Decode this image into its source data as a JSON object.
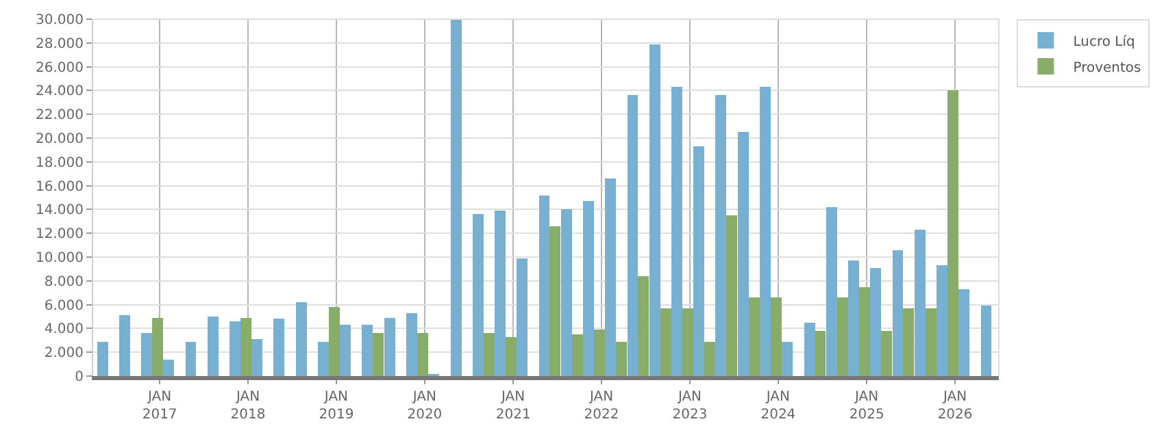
{
  "chart_data": {
    "type": "bar",
    "x": [
      "2016-06",
      "2016-09",
      "2016-12",
      "2017-03",
      "2017-06",
      "2017-09",
      "2017-12",
      "2018-03",
      "2018-06",
      "2018-09",
      "2018-12",
      "2019-03",
      "2019-06",
      "2019-09",
      "2019-12",
      "2020-03",
      "2020-06",
      "2020-09",
      "2020-12",
      "2021-03",
      "2021-06",
      "2021-09",
      "2021-12",
      "2022-03",
      "2022-06",
      "2022-09",
      "2022-12",
      "2023-03",
      "2023-06",
      "2023-09",
      "2023-12",
      "2024-03",
      "2024-06",
      "2024-09",
      "2024-12",
      "2025-03",
      "2025-06",
      "2025-09",
      "2025-12",
      "2026-03",
      "2026-06"
    ],
    "series": [
      {
        "name": "Lucro Líq",
        "color": "#77b0d1",
        "values": [
          2900,
          5100,
          3600,
          1400,
          2900,
          5000,
          4600,
          3100,
          4800,
          6200,
          2900,
          4300,
          4300,
          4900,
          5300,
          200,
          30000,
          13600,
          13900,
          9900,
          15200,
          14000,
          14700,
          16600,
          23600,
          27900,
          24300,
          19300,
          23600,
          20500,
          24300,
          2900,
          4500,
          14200,
          9700,
          9100,
          10600,
          12300,
          9300,
          7300,
          5900
        ]
      },
      {
        "name": "Proventos",
        "color": "#88ad6a",
        "values": [
          0,
          0,
          4900,
          0,
          0,
          0,
          4900,
          0,
          0,
          0,
          5800,
          0,
          3600,
          0,
          3600,
          0,
          0,
          3600,
          3300,
          0,
          12600,
          3500,
          3900,
          2900,
          8400,
          5700,
          5700,
          2900,
          13500,
          6600,
          6600,
          0,
          3800,
          6600,
          7500,
          3800,
          5700,
          5700,
          24000,
          0,
          0
        ]
      }
    ],
    "xlim": [
      "2016-04",
      "2026-07"
    ],
    "xticks": [
      {
        "value": "2017-01",
        "label": "JAN\n2017"
      },
      {
        "value": "2018-01",
        "label": "JAN\n2018"
      },
      {
        "value": "2019-01",
        "label": "JAN\n2019"
      },
      {
        "value": "2020-01",
        "label": "JAN\n2020"
      },
      {
        "value": "2021-01",
        "label": "JAN\n2021"
      },
      {
        "value": "2022-01",
        "label": "JAN\n2022"
      },
      {
        "value": "2023-01",
        "label": "JAN\n2023"
      },
      {
        "value": "2024-01",
        "label": "JAN\n2024"
      },
      {
        "value": "2025-01",
        "label": "JAN\n2025"
      },
      {
        "value": "2026-01",
        "label": "JAN\n2026"
      }
    ],
    "ylim": [
      0,
      30000
    ],
    "yticks": [
      {
        "value": 0,
        "label": "0"
      },
      {
        "value": 2000,
        "label": "2.000"
      },
      {
        "value": 4000,
        "label": "4.000"
      },
      {
        "value": 6000,
        "label": "6.000"
      },
      {
        "value": 8000,
        "label": "8.000"
      },
      {
        "value": 10000,
        "label": "10.000"
      },
      {
        "value": 12000,
        "label": "12.000"
      },
      {
        "value": 14000,
        "label": "14.000"
      },
      {
        "value": 16000,
        "label": "16.000"
      },
      {
        "value": 18000,
        "label": "18.000"
      },
      {
        "value": 20000,
        "label": "20.000"
      },
      {
        "value": 22000,
        "label": "22.000"
      },
      {
        "value": 24000,
        "label": "24.000"
      },
      {
        "value": 26000,
        "label": "26.000"
      },
      {
        "value": 28000,
        "label": "28.000"
      },
      {
        "value": 30000,
        "label": "30.000"
      }
    ],
    "grid": true,
    "legend": "top right"
  }
}
